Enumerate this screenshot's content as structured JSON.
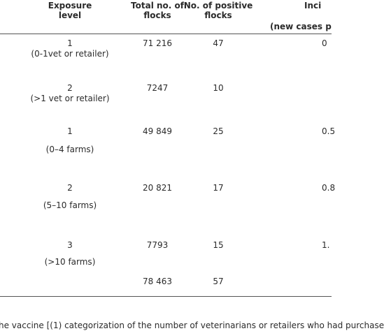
{
  "table": {
    "header": [
      [
        "Exposure",
        "level"
      ],
      [
        "Total no. of",
        "flocks"
      ],
      [
        "No. of positive",
        "flocks"
      ],
      [
        "Inci",
        "(new cases p"
      ]
    ],
    "rows": [
      {
        "level": "1",
        "group": "(0-1vet or retailer)",
        "total": "71 216",
        "positive": "47",
        "incidence": "0"
      },
      {
        "level": "2",
        "group": "(>1 vet or retailer)",
        "total": "7247",
        "positive": "10"
      },
      {
        "level": "1",
        "group": "(0–4 farms)",
        "total": "49 849",
        "positive": "25",
        "incidence": "0.5"
      },
      {
        "level": "2",
        "group": "(5–10 farms)",
        "total": "20 821",
        "positive": "17",
        "incidence": "0.8"
      },
      {
        "level": "3",
        "group": "(>10 farms)",
        "total": "7793",
        "positive": "15",
        "incidence": "1."
      },
      {
        "total": "78 463",
        "positive": "57"
      }
    ]
  },
  "footnote": "he vaccine [(1) categorization of the number of veterinarians or retailers who had purchase"
}
